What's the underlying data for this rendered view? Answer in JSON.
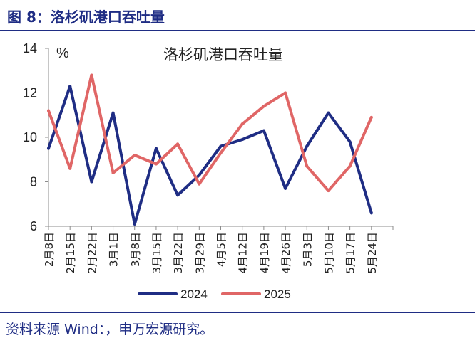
{
  "figure": {
    "title": "图 8：洛杉矶港口吞吐量",
    "source": "资料来源 Wind：，申万宏源研究。"
  },
  "colors": {
    "brand": "#1f2d84",
    "series_2024": "#1f2d84",
    "series_2025": "#e06666",
    "axis": "#8c8c8c"
  },
  "chart_data": {
    "type": "line",
    "title": "洛杉矶港口吞吐量",
    "ylabel": "%",
    "xlabel": "",
    "ylim": [
      6,
      14
    ],
    "yticks": [
      6,
      8,
      10,
      12,
      14
    ],
    "categories": [
      "2月8日",
      "2月15日",
      "2月22日",
      "3月1日",
      "3月8日",
      "3月15日",
      "3月22日",
      "3月29日",
      "4月5日",
      "4月12日",
      "4月19日",
      "4月26日",
      "5月3日",
      "5月10日",
      "5月17日",
      "5月24日"
    ],
    "series": [
      {
        "name": "2024",
        "color": "#1f2d84",
        "values": [
          9.5,
          12.3,
          8.0,
          11.1,
          6.1,
          9.5,
          7.4,
          8.3,
          9.6,
          9.9,
          10.3,
          7.7,
          9.6,
          11.1,
          9.8,
          6.6
        ]
      },
      {
        "name": "2025",
        "color": "#e06666",
        "values": [
          11.2,
          8.6,
          12.8,
          8.4,
          9.2,
          8.8,
          9.7,
          7.9,
          9.3,
          10.6,
          11.4,
          12.0,
          8.7,
          7.6,
          8.7,
          10.9
        ]
      }
    ],
    "legend": "bottom-center",
    "grid": false
  }
}
